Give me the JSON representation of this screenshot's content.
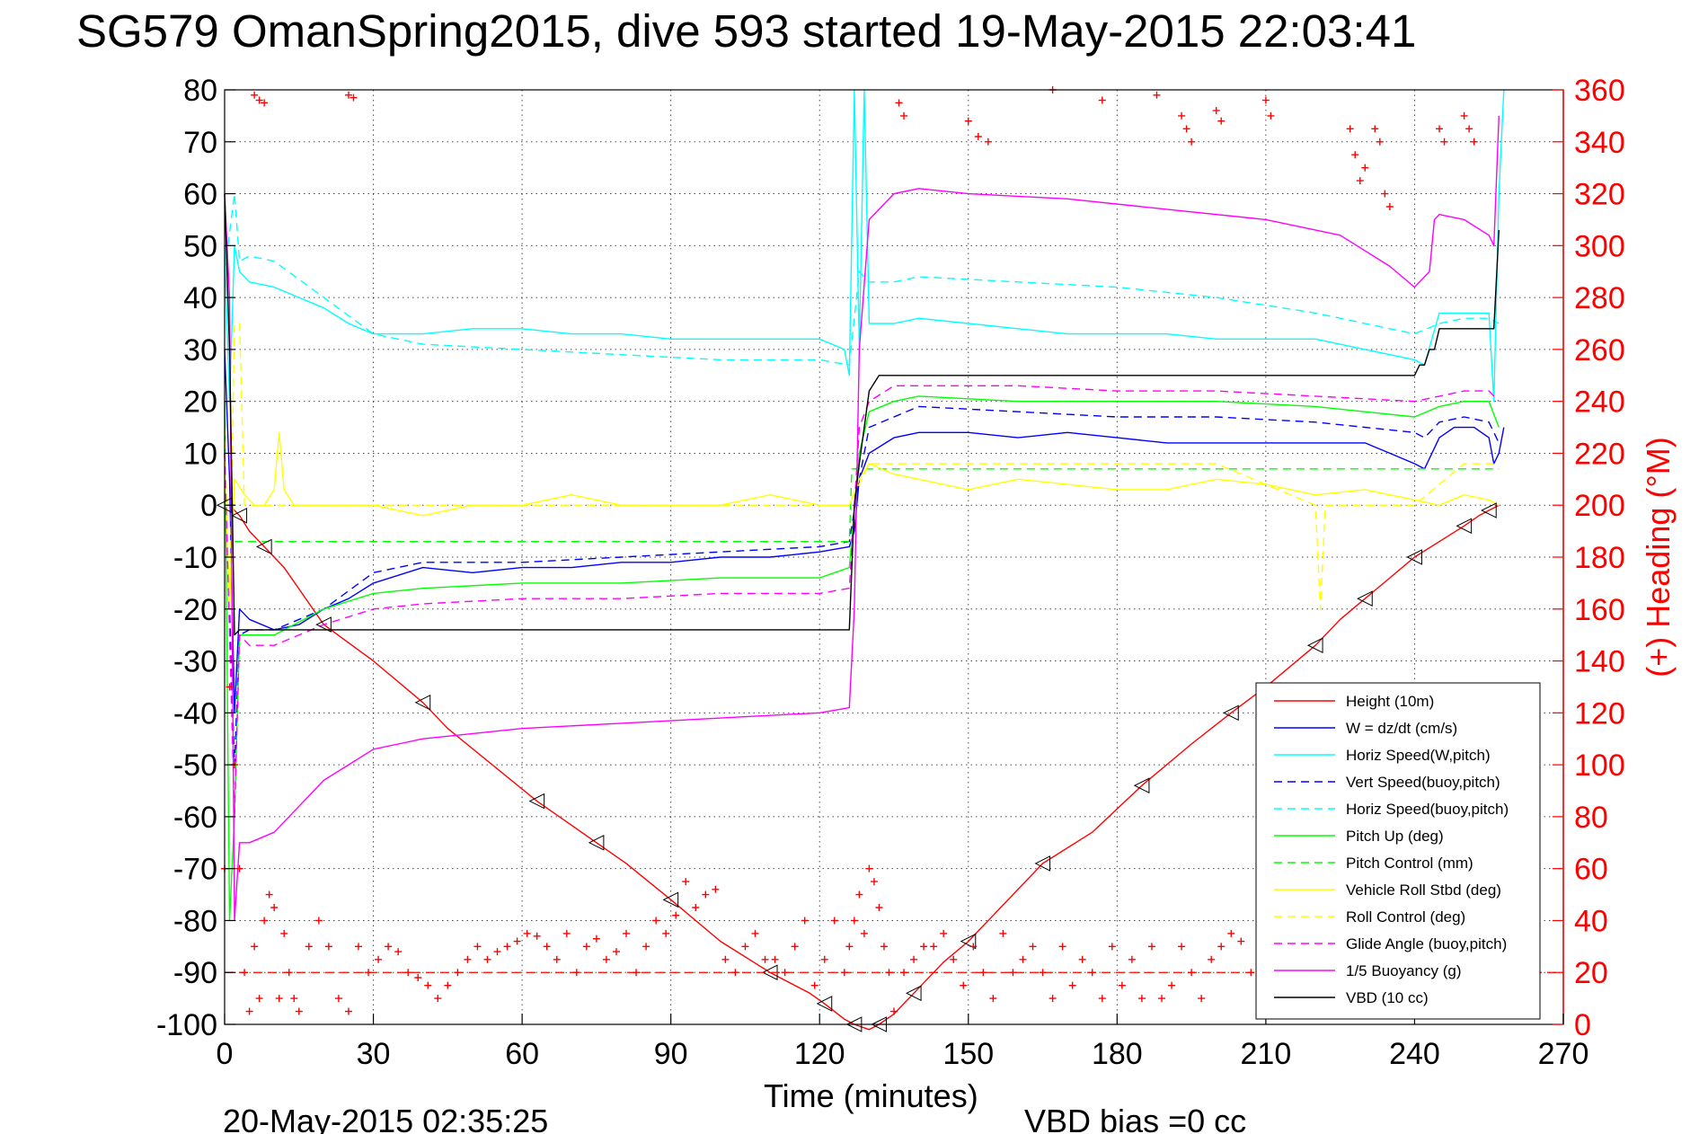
{
  "chart_data": {
    "type": "line",
    "title": "SG579 OmanSpring2015, dive 593 started 19-May-2015 22:03:41",
    "xlabel": "Time (minutes)",
    "ylabel": "",
    "ylabel_right": "(+) Heading (°M)",
    "xlim": [
      0,
      270
    ],
    "ylim": [
      -100,
      80
    ],
    "ylim_right": [
      0,
      360
    ],
    "xticks": [
      0,
      30,
      60,
      90,
      120,
      150,
      180,
      210,
      240,
      270
    ],
    "yticks": [
      80,
      70,
      60,
      50,
      40,
      30,
      20,
      10,
      0,
      -10,
      -20,
      -30,
      -40,
      -50,
      -60,
      -70,
      -80,
      -90,
      -100
    ],
    "yticks_right": [
      360,
      340,
      320,
      300,
      280,
      260,
      240,
      220,
      200,
      180,
      160,
      140,
      120,
      100,
      80,
      60,
      40,
      20,
      0
    ],
    "grid": true,
    "legend_position": "bottom-right",
    "footer_left": "20-May-2015 02:35:25",
    "footer_right": "VBD bias =0 cc",
    "colors": {
      "red": "#ff0000",
      "blue": "#0000ff",
      "cyan": "#00ffff",
      "green": "#00ff00",
      "yellow": "#ffff00",
      "magenta": "#ff00ff",
      "black": "#000000"
    },
    "series": [
      {
        "name": "Height (10m)",
        "color": "#ff0000",
        "dash": "solid",
        "markers": "triangle",
        "x": [
          0,
          1,
          3,
          5,
          8,
          12,
          20,
          30,
          40,
          45,
          63,
          69,
          75,
          81,
          90,
          100,
          110,
          118,
          121,
          125,
          127,
          130,
          132,
          135,
          139,
          145,
          150,
          155,
          165,
          175,
          185,
          195,
          203,
          210,
          220,
          225,
          230,
          235,
          240,
          245,
          250,
          253,
          255,
          257
        ],
        "y": [
          0,
          0,
          -2,
          -5,
          -8,
          -12,
          -23,
          -30,
          -38,
          -43,
          -57,
          -61,
          -65,
          -69,
          -76,
          -84,
          -90,
          -94,
          -96,
          -99,
          -100,
          -101,
          -100,
          -98,
          -94,
          -88,
          -84,
          -79,
          -69,
          -63,
          -54,
          -46,
          -40,
          -35,
          -27,
          -22,
          -18,
          -14,
          -10,
          -7,
          -4,
          -2,
          -1,
          0
        ]
      },
      {
        "name": "W = dz/dt (cm/s)",
        "color": "#0000ff",
        "dash": "solid",
        "x": [
          0,
          1,
          2,
          3,
          5,
          10,
          15,
          20,
          25,
          30,
          40,
          50,
          60,
          70,
          80,
          90,
          100,
          110,
          120,
          126,
          127,
          128,
          130,
          135,
          140,
          150,
          160,
          170,
          180,
          190,
          200,
          210,
          220,
          230,
          235,
          240,
          242,
          245,
          248,
          252,
          255,
          256,
          257,
          258
        ],
        "y": [
          30,
          5,
          -40,
          -20,
          -22,
          -24,
          -23,
          -20,
          -18,
          -15,
          -12,
          -13,
          -12,
          -12,
          -11,
          -11,
          -10,
          -10,
          -9,
          -8,
          -5,
          5,
          10,
          13,
          14,
          14,
          13,
          14,
          13,
          12,
          12,
          12,
          12,
          12,
          10,
          8,
          7,
          13,
          15,
          15,
          13,
          8,
          10,
          15
        ]
      },
      {
        "name": "Horiz Speed(W,pitch)",
        "color": "#00ffff",
        "dash": "solid",
        "x": [
          0,
          1,
          2,
          3,
          5,
          10,
          15,
          20,
          25,
          30,
          40,
          50,
          60,
          70,
          80,
          90,
          100,
          110,
          120,
          125,
          126,
          127,
          128,
          129,
          130,
          135,
          140,
          150,
          160,
          170,
          180,
          190,
          200,
          210,
          220,
          230,
          240,
          242,
          245,
          250,
          255,
          256,
          257,
          258
        ],
        "y": [
          50,
          20,
          50,
          45,
          43,
          42,
          40,
          38,
          35,
          33,
          33,
          34,
          34,
          33,
          33,
          32,
          32,
          32,
          32,
          30,
          25,
          80,
          30,
          80,
          35,
          35,
          36,
          35,
          34,
          33,
          33,
          33,
          32,
          32,
          32,
          30,
          28,
          27,
          37,
          37,
          37,
          20,
          60,
          80
        ]
      },
      {
        "name": "Vert Speed(buoy,pitch)",
        "color": "#0000ff",
        "dash": "dashed",
        "x": [
          0,
          2,
          3,
          5,
          10,
          20,
          30,
          40,
          60,
          80,
          100,
          120,
          126,
          128,
          130,
          140,
          160,
          180,
          200,
          220,
          240,
          242,
          245,
          250,
          255,
          257
        ],
        "y": [
          10,
          -50,
          -25,
          -24,
          -24,
          -20,
          -13,
          -11,
          -11,
          -10,
          -9,
          -8,
          -7,
          5,
          15,
          19,
          18,
          17,
          17,
          16,
          14,
          13,
          16,
          17,
          16,
          12
        ]
      },
      {
        "name": "Horiz Speed(buoy,pitch)",
        "color": "#00ffff",
        "dash": "dashed",
        "x": [
          0,
          2,
          3,
          5,
          10,
          20,
          30,
          40,
          60,
          80,
          100,
          120,
          126,
          128,
          130,
          135,
          140,
          160,
          180,
          200,
          220,
          235,
          240,
          245,
          250,
          255,
          257
        ],
        "y": [
          45,
          60,
          47,
          48,
          47,
          40,
          33,
          31,
          30,
          29,
          28,
          28,
          27,
          45,
          43,
          43,
          44,
          43,
          42,
          40,
          37,
          34,
          33,
          35,
          36,
          36,
          35
        ]
      },
      {
        "name": "Pitch Up (deg)",
        "color": "#00ff00",
        "dash": "solid",
        "x": [
          0,
          1,
          2,
          3,
          5,
          10,
          20,
          30,
          40,
          60,
          80,
          100,
          120,
          126,
          128,
          130,
          135,
          140,
          160,
          180,
          200,
          220,
          240,
          245,
          250,
          255,
          257
        ],
        "y": [
          20,
          -80,
          -60,
          -25,
          -25,
          -25,
          -20,
          -17,
          -16,
          -15,
          -15,
          -14,
          -14,
          -12,
          10,
          18,
          20,
          21,
          20,
          20,
          20,
          19,
          17,
          19,
          20,
          20,
          15
        ]
      },
      {
        "name": "Pitch Control (mm)",
        "color": "#00ff00",
        "dash": "dashed",
        "x": [
          2,
          126,
          126.5,
          257
        ],
        "y": [
          -7,
          -7,
          7,
          7
        ]
      },
      {
        "name": "Vehicle Roll Stbd (deg)",
        "color": "#ffff00",
        "dash": "solid",
        "x": [
          0,
          1,
          2,
          4,
          6,
          8,
          10,
          11,
          12,
          14,
          20,
          25,
          30,
          40,
          50,
          60,
          70,
          80,
          90,
          100,
          110,
          120,
          126,
          128,
          130,
          135,
          140,
          150,
          160,
          170,
          180,
          190,
          200,
          210,
          220,
          230,
          240,
          245,
          250,
          255,
          257
        ],
        "y": [
          10,
          -20,
          5,
          2,
          0,
          0,
          3,
          14,
          3,
          0,
          0,
          0,
          0,
          -2,
          0,
          0,
          2,
          0,
          0,
          0,
          2,
          0,
          0,
          5,
          8,
          6,
          5,
          3,
          5,
          4,
          3,
          3,
          5,
          4,
          2,
          3,
          1,
          0,
          2,
          1,
          0
        ]
      },
      {
        "name": "Roll Control (deg)",
        "color": "#ffff00",
        "dash": "dashed",
        "x": [
          0,
          1,
          2,
          3,
          4,
          5,
          8,
          10,
          12,
          20,
          30,
          40,
          60,
          80,
          100,
          120,
          126,
          130,
          140,
          150,
          160,
          180,
          200,
          220,
          221,
          222,
          240,
          250,
          257
        ],
        "y": [
          15,
          -20,
          35,
          35,
          0,
          0,
          0,
          0,
          0,
          0,
          0,
          0,
          0,
          0,
          0,
          0,
          0,
          8,
          8,
          8,
          8,
          8,
          8,
          0,
          -20,
          0,
          0,
          8,
          8
        ]
      },
      {
        "name": "Glide Angle (buoy,pitch)",
        "color": "#ff00ff",
        "dash": "dashed",
        "x": [
          0,
          2,
          3,
          5,
          10,
          20,
          30,
          40,
          60,
          80,
          100,
          120,
          126,
          128,
          130,
          135,
          140,
          160,
          180,
          200,
          220,
          240,
          245,
          250,
          255,
          257
        ],
        "y": [
          10,
          -60,
          -25,
          -27,
          -27,
          -23,
          -20,
          -19,
          -18,
          -18,
          -17,
          -17,
          -16,
          15,
          20,
          23,
          23,
          23,
          22,
          22,
          21,
          20,
          21,
          22,
          22,
          20
        ]
      },
      {
        "name": "1/5 Buoyancy (g)",
        "color": "#ff00ff",
        "dash": "solid",
        "x": [
          0,
          1,
          2,
          3,
          5,
          10,
          15,
          20,
          25,
          30,
          35,
          40,
          60,
          80,
          100,
          120,
          126,
          127,
          128,
          130,
          135,
          140,
          150,
          170,
          190,
          210,
          225,
          235,
          240,
          243,
          244,
          245,
          250,
          255,
          256,
          257
        ],
        "y": [
          60,
          40,
          -80,
          -65,
          -65,
          -63,
          -58,
          -53,
          -50,
          -47,
          -46,
          -45,
          -43,
          -42,
          -41,
          -40,
          -39,
          -20,
          30,
          55,
          60,
          61,
          60,
          59,
          57,
          55,
          52,
          46,
          42,
          45,
          55,
          56,
          55,
          52,
          50,
          75
        ]
      },
      {
        "name": "VBD (10 cc)",
        "color": "#000000",
        "dash": "solid",
        "x": [
          0,
          1,
          2,
          3,
          4,
          5,
          10,
          20,
          30,
          60,
          90,
          120,
          125,
          126,
          127,
          128,
          130,
          132,
          135,
          140,
          160,
          180,
          200,
          220,
          240,
          241,
          242,
          243,
          244,
          245,
          250,
          255,
          256,
          257
        ],
        "y": [
          60,
          30,
          -25,
          -24,
          -24,
          -24,
          -24,
          -24,
          -24,
          -24,
          -24,
          -24,
          -24,
          -24,
          0,
          8,
          22,
          25,
          25,
          25,
          25,
          25,
          25,
          25,
          25,
          27,
          27,
          30,
          30,
          34,
          34,
          34,
          34,
          53
        ]
      }
    ],
    "heading": {
      "name": "(+) Heading (°M)",
      "color": "#ff0000",
      "marker": "+",
      "axis": "right",
      "x": [
        0,
        1,
        2,
        3,
        4,
        5,
        6,
        7,
        8,
        9,
        10,
        11,
        12,
        13,
        14,
        15,
        17,
        19,
        21,
        23,
        25,
        27,
        29,
        31,
        33,
        35,
        37,
        39,
        41,
        43,
        45,
        47,
        49,
        51,
        53,
        55,
        57,
        59,
        61,
        63,
        65,
        67,
        69,
        71,
        73,
        75,
        77,
        79,
        81,
        83,
        85,
        87,
        89,
        91,
        93,
        95,
        97,
        99,
        101,
        103,
        105,
        107,
        109,
        111,
        113,
        115,
        117,
        119,
        121,
        123,
        125,
        126,
        127,
        128,
        129,
        130,
        131,
        132,
        133,
        134,
        135,
        137,
        139,
        141,
        143,
        145,
        147,
        149,
        151,
        153,
        155,
        157,
        159,
        161,
        163,
        165,
        167,
        169,
        171,
        173,
        175,
        177,
        179,
        181,
        183,
        185,
        187,
        189,
        191,
        193,
        195,
        197,
        199,
        201,
        203,
        205,
        207,
        209,
        211,
        213,
        215,
        217,
        219,
        221,
        223,
        225,
        227,
        229,
        231,
        233,
        235,
        237,
        239,
        241,
        243,
        245,
        247,
        249,
        251,
        253,
        255,
        257
      ],
      "y": [
        60,
        130,
        100,
        60,
        20,
        5,
        30,
        10,
        40,
        50,
        45,
        10,
        35,
        20,
        10,
        5,
        30,
        40,
        30,
        10,
        5,
        30,
        20,
        25,
        30,
        28,
        20,
        18,
        15,
        10,
        15,
        20,
        25,
        30,
        25,
        28,
        30,
        32,
        35,
        34,
        30,
        25,
        35,
        20,
        30,
        33,
        25,
        28,
        35,
        20,
        30,
        40,
        35,
        42,
        55,
        45,
        50,
        52,
        25,
        20,
        30,
        35,
        25,
        25,
        20,
        30,
        40,
        15,
        25,
        40,
        20,
        30,
        40,
        50,
        35,
        60,
        55,
        45,
        30,
        20,
        5,
        20,
        25,
        30,
        30,
        35,
        25,
        15,
        30,
        20,
        10,
        35,
        20,
        25,
        30,
        20,
        10,
        30,
        15,
        25,
        20,
        10,
        30,
        15,
        25,
        10,
        30,
        10,
        15,
        30,
        20,
        10,
        25,
        30,
        35,
        32,
        20,
        10,
        30,
        25,
        15,
        20,
        10,
        30,
        20,
        10,
        15,
        20,
        25,
        15,
        10,
        5,
        10,
        30,
        25,
        15,
        10,
        5,
        15,
        10,
        5,
        10
      ],
      "x_top": [
        6,
        7,
        8,
        25,
        26,
        136,
        137,
        150,
        152,
        154,
        167,
        177,
        188,
        193,
        194,
        195,
        200,
        201,
        210,
        211,
        227,
        228,
        229,
        230,
        232,
        233,
        234,
        235,
        245,
        246,
        250,
        251,
        252
      ],
      "y_top": [
        358,
        356,
        355,
        358,
        357,
        355,
        350,
        348,
        342,
        340,
        360,
        356,
        358,
        350,
        345,
        340,
        352,
        348,
        356,
        350,
        345,
        335,
        325,
        330,
        345,
        340,
        320,
        315,
        345,
        340,
        350,
        345,
        340
      ]
    },
    "heading_ref": {
      "value": 20,
      "color": "#ff0000",
      "dash": "dashed"
    }
  }
}
